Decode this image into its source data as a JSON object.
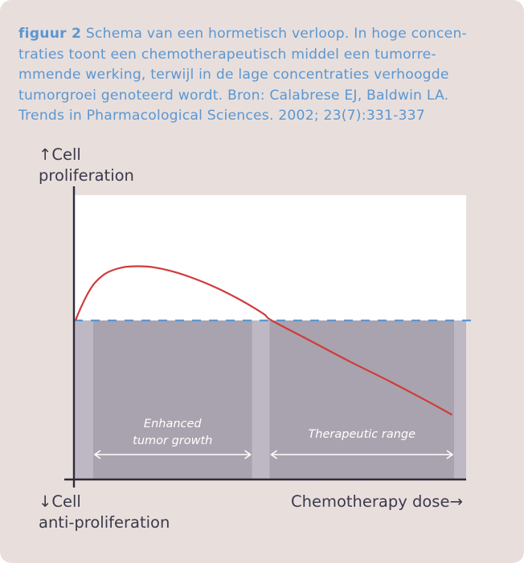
{
  "caption": {
    "label": "figuur 2",
    "line1": "Schema van een hormetisch verloop. In hoge concen-",
    "line2": "traties toont een chemotherapeutisch middel een tumorre-",
    "line3": "mmende werking, terwijl in de lage concentraties verhoogde",
    "line4": "tumorgroei genoteerd wordt. Bron: Calabrese EJ, Baldwin LA.",
    "line5": "Trends in Pharmacological Sciences. 2002; 23(7):331-337"
  },
  "axes": {
    "y_top_line1": "↑Cell",
    "y_top_line2": "proliferation",
    "y_bottom_line1": "↓Cell",
    "y_bottom_line2": "anti-proliferation",
    "x_label": "Chemotherapy dose→"
  },
  "regions": {
    "enhanced_line1": "Enhanced",
    "enhanced_line2": "tumor growth",
    "therapeutic": "Therapeutic range"
  },
  "colors": {
    "card": "#e8dfdd",
    "caption": "#5b97d1",
    "curve": "#d13b3b",
    "baseline": "#5b97d1",
    "region_light": "#bdb8c4",
    "region_dark": "#a8a3ae",
    "plot_bg": "#ffffff",
    "axis": "#2e2a3a"
  },
  "chart_data": {
    "type": "line",
    "title": "",
    "xlabel": "Chemotherapy dose",
    "ylabel": "Cell proliferation",
    "xlim": [
      0,
      100
    ],
    "ylim": [
      -1,
      1
    ],
    "baseline": 0,
    "series": [
      {
        "x": [
          0,
          1,
          3,
          5,
          8,
          12,
          16,
          20,
          25,
          30,
          36,
          42,
          48,
          50,
          60,
          70,
          80,
          90,
          96
        ],
        "values": [
          0,
          0.09,
          0.24,
          0.35,
          0.44,
          0.49,
          0.5,
          0.49,
          0.45,
          0.39,
          0.3,
          0.19,
          0.06,
          0.0,
          -0.19,
          -0.38,
          -0.56,
          -0.75,
          -0.87
        ]
      }
    ],
    "regions": [
      {
        "label": "Enhanced tumor growth",
        "x": [
          4.5,
          45
        ]
      },
      {
        "label": "Therapeutic range",
        "x": [
          49.5,
          96.5
        ]
      }
    ],
    "grid": false
  }
}
